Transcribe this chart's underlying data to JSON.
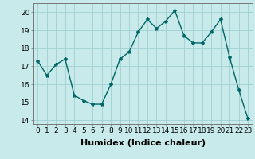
{
  "x": [
    0,
    1,
    2,
    3,
    4,
    5,
    6,
    7,
    8,
    9,
    10,
    11,
    12,
    13,
    14,
    15,
    16,
    17,
    18,
    19,
    20,
    21,
    22,
    23
  ],
  "y": [
    17.3,
    16.5,
    17.1,
    17.4,
    15.4,
    15.1,
    14.9,
    14.9,
    16.0,
    17.4,
    17.8,
    18.9,
    19.6,
    19.1,
    19.5,
    20.1,
    18.7,
    18.3,
    18.3,
    18.9,
    19.6,
    17.5,
    15.7,
    14.1
  ],
  "line_color": "#006666",
  "marker": "*",
  "marker_size": 3,
  "bg_color": "#c8eaea",
  "grid_color": "#a0d0d0",
  "xlabel": "Humidex (Indice chaleur)",
  "xlim": [
    -0.5,
    23.5
  ],
  "ylim": [
    13.8,
    20.5
  ],
  "yticks": [
    14,
    15,
    16,
    17,
    18,
    19,
    20
  ],
  "xtick_labels": [
    "0",
    "1",
    "2",
    "3",
    "4",
    "5",
    "6",
    "7",
    "8",
    "9",
    "10",
    "11",
    "12",
    "13",
    "14",
    "15",
    "16",
    "17",
    "18",
    "19",
    "20",
    "21",
    "22",
    "23"
  ],
  "xlabel_fontsize": 8,
  "tick_fontsize": 6.5,
  "line_width": 1.0
}
